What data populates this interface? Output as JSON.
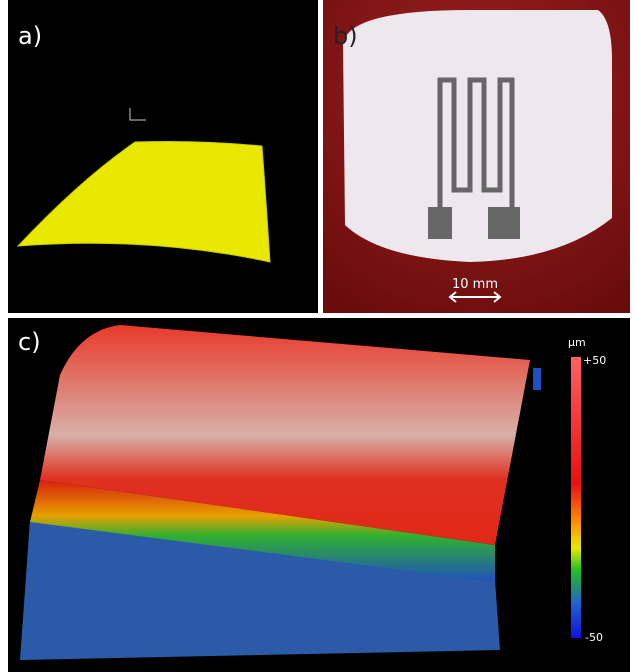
{
  "panels": [
    {
      "label": "a)"
    },
    {
      "label": "b)",
      "scale_bar": "10 mm"
    },
    {
      "label": "c)",
      "colorbar": {
        "unit": "µm",
        "max_label": "+50",
        "min_label": "-50"
      }
    }
  ]
}
